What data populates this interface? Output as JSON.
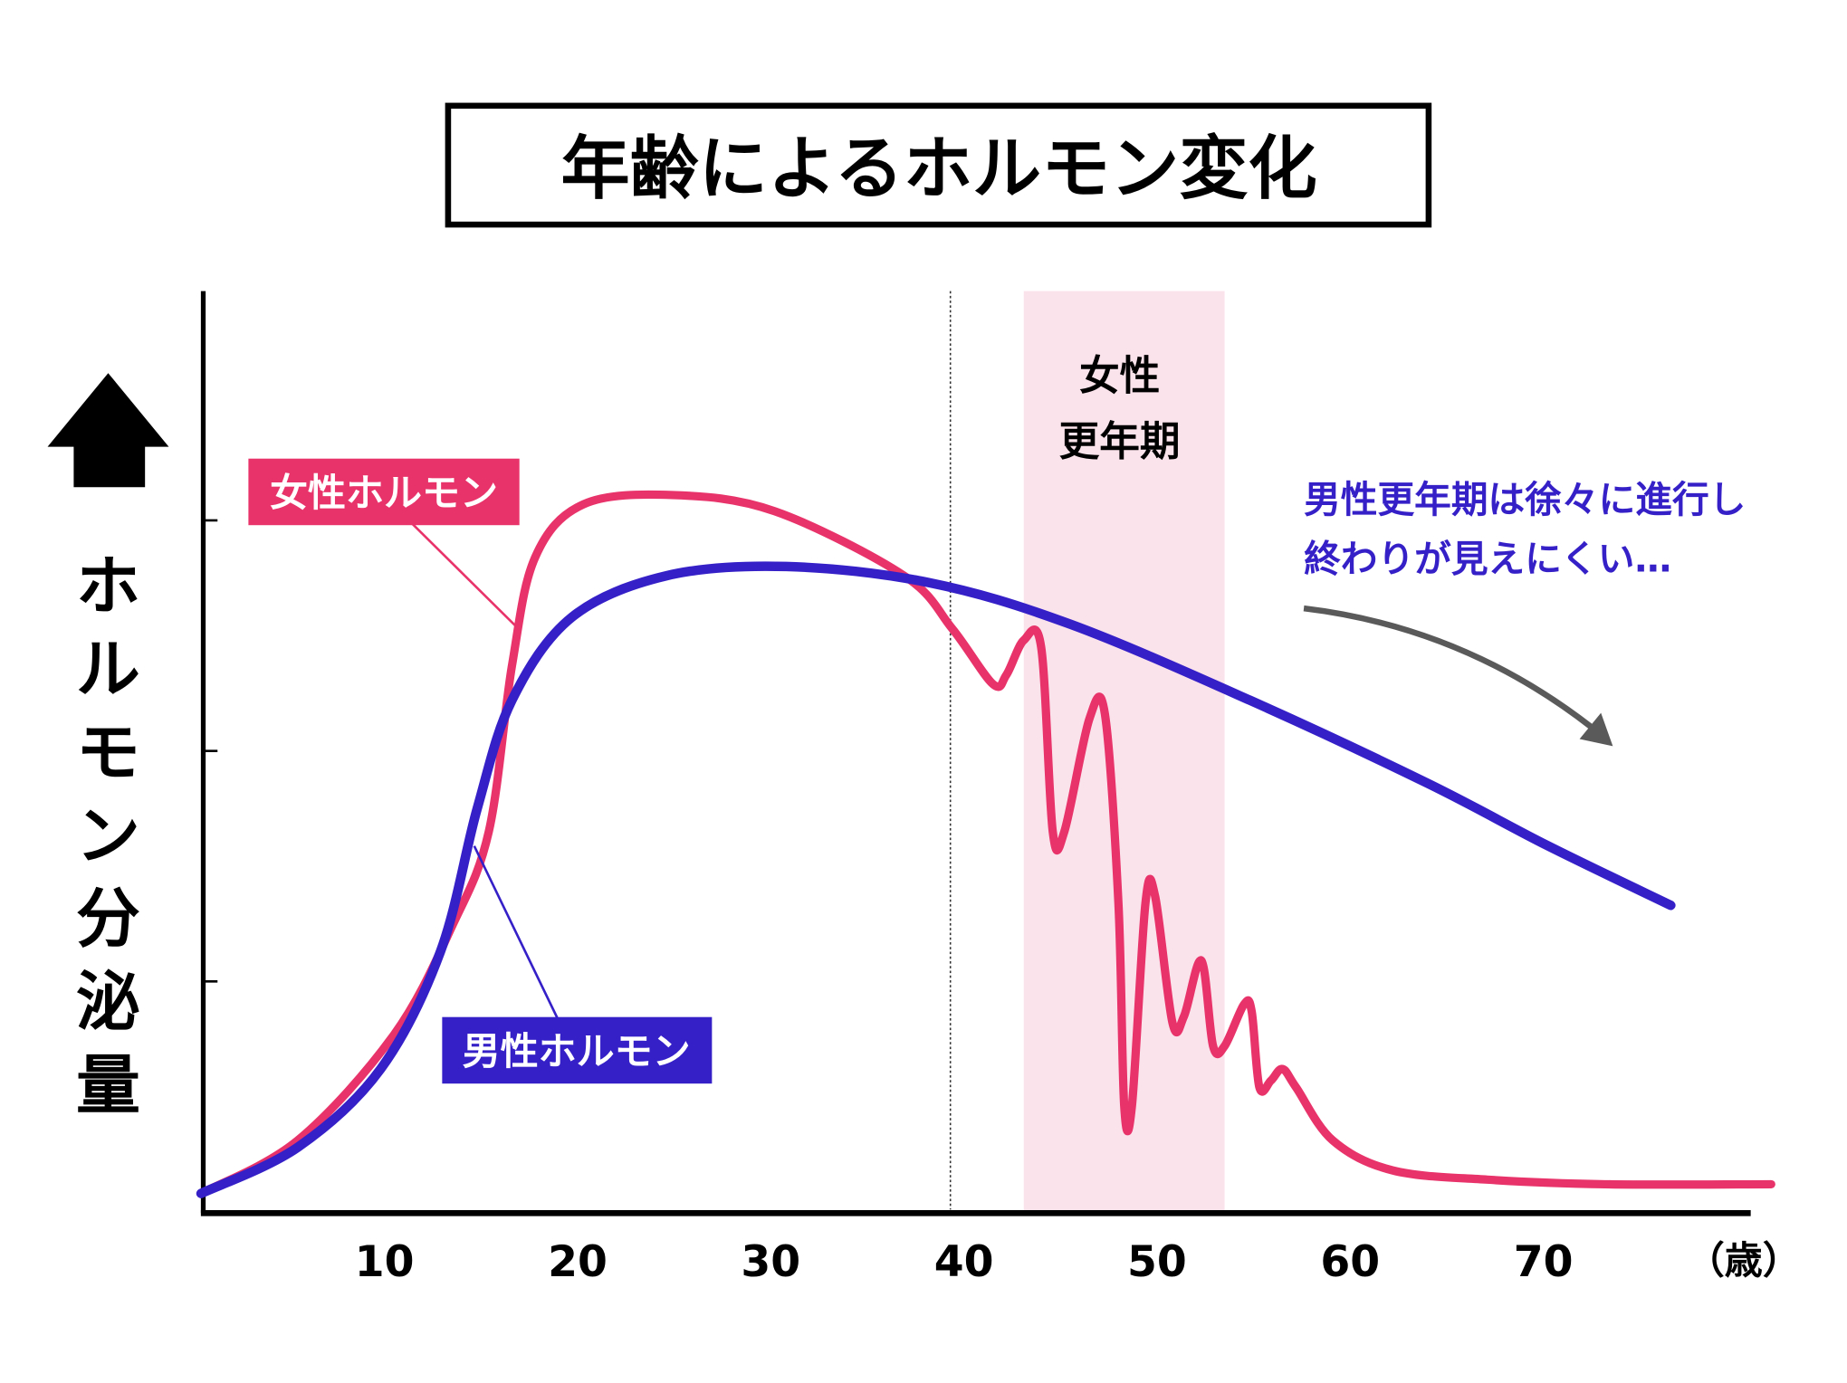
{
  "colors": {
    "female": "#e8336a",
    "male": "#3520c8",
    "menopause_band": "#fbe3ec",
    "arrow": "#5a5a5a",
    "axis": "#000000"
  },
  "chart_data": {
    "type": "line",
    "title": "年齢によるホルモン変化",
    "xlabel": "",
    "x_unit": "（歳）",
    "ylabel": "ホルモン分泌量",
    "y_arrow_icon": "up-arrow-icon",
    "xlim": [
      0.5,
      80.7
    ],
    "ylim": [
      0,
      4
    ],
    "x_ticks": [
      "10",
      "20",
      "30",
      "40",
      "50",
      "60",
      "70"
    ],
    "x_tick_values": [
      10,
      20,
      30,
      40,
      50,
      60,
      70
    ],
    "y_ticks": [
      1,
      2,
      3
    ],
    "grid": false,
    "series": [
      {
        "name": "女性ホルモン",
        "color": "#e8336a",
        "x": [
          0.5,
          5.5,
          10.5,
          13.5,
          15.4,
          16.6,
          17.8,
          20.3,
          24.9,
          30.2,
          36.9,
          39.4,
          41.5,
          42.2,
          43.1,
          44.0,
          44.6,
          45.2,
          46.5,
          47.3,
          48.0,
          48.3,
          48.7,
          49.4,
          49.9,
          50.8,
          51.4,
          52.3,
          52.9,
          53.5,
          54.5,
          54.9,
          55.3,
          55.9,
          56.5,
          57.2,
          59.1,
          62.2,
          67.1,
          73.2,
          81.8
        ],
        "y": [
          0.08,
          0.31,
          0.77,
          1.24,
          1.65,
          2.37,
          2.84,
          3.07,
          3.11,
          3.04,
          2.76,
          2.53,
          2.29,
          2.33,
          2.48,
          2.45,
          1.65,
          1.65,
          2.14,
          2.16,
          1.34,
          0.46,
          0.46,
          1.34,
          1.37,
          0.82,
          0.85,
          1.09,
          0.72,
          0.72,
          0.9,
          0.87,
          0.54,
          0.57,
          0.62,
          0.54,
          0.31,
          0.18,
          0.14,
          0.12,
          0.12
        ]
      },
      {
        "name": "男性ホルモン",
        "color": "#3520c8",
        "x": [
          0.5,
          5.5,
          9.8,
          12.9,
          14.8,
          16.6,
          19.7,
          24.6,
          30.8,
          38.2,
          45.5,
          54.8,
          64.0,
          70.2,
          76.6
        ],
        "y": [
          0.08,
          0.28,
          0.62,
          1.13,
          1.75,
          2.22,
          2.58,
          2.76,
          2.8,
          2.73,
          2.55,
          2.22,
          1.86,
          1.59,
          1.33
        ]
      }
    ],
    "annotations": {
      "menopause_label_line1": "女性",
      "menopause_label_line2": "更年期",
      "menopause_range": [
        43.1,
        53.5
      ],
      "dotted_line_x": 39.3,
      "male_note_line1": "男性更年期は徐々に進行し",
      "male_note_line2": "終わりが見えにくい…"
    }
  }
}
